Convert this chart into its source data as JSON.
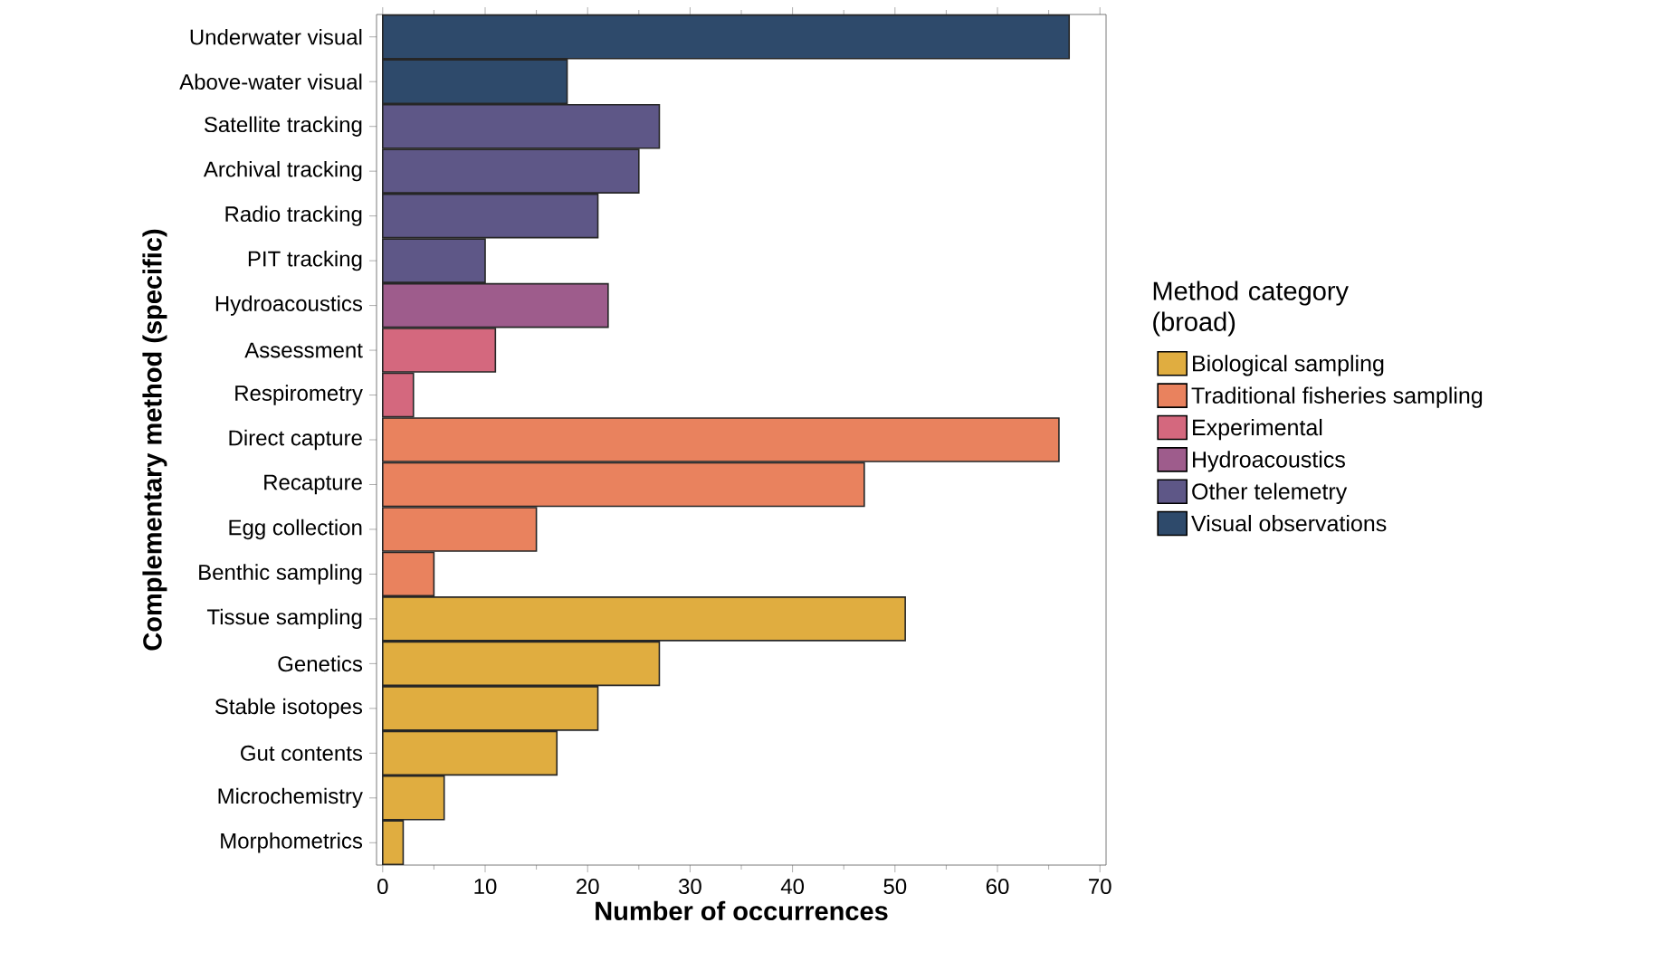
{
  "chart_data": {
    "type": "bar",
    "orientation": "horizontal",
    "xlabel": "Number of occurrences",
    "ylabel": "Complementary method (specific)",
    "legend_title": "Method category (broad)",
    "categories": [
      "Underwater visual",
      "Above-water visual",
      "Satellite tracking",
      "Archival tracking",
      "Radio tracking",
      "PIT tracking",
      "Hydroacoustics",
      "Assessment",
      "Respirometry",
      "Direct capture",
      "Recapture",
      "Egg collection",
      "Benthic sampling",
      "Tissue sampling",
      "Genetics",
      "Stable isotopes",
      "Gut contents",
      "Microchemistry",
      "Morphometrics"
    ],
    "series": [
      {
        "name": "Biological sampling",
        "color": "#e0ad40",
        "values": [
          null,
          null,
          null,
          null,
          null,
          null,
          null,
          null,
          null,
          null,
          null,
          null,
          null,
          51,
          27,
          21,
          17,
          6,
          2
        ]
      },
      {
        "name": "Traditional fisheries sampling",
        "color": "#e9825e",
        "values": [
          null,
          null,
          null,
          null,
          null,
          null,
          null,
          null,
          null,
          66,
          47,
          15,
          5,
          null,
          null,
          null,
          null,
          null,
          null
        ]
      },
      {
        "name": "Experimental",
        "color": "#d4687e",
        "values": [
          null,
          null,
          null,
          null,
          null,
          null,
          null,
          11,
          3,
          null,
          null,
          null,
          null,
          null,
          null,
          null,
          null,
          null,
          null
        ]
      },
      {
        "name": "Hydroacoustics",
        "color": "#9e5c8c",
        "values": [
          null,
          null,
          null,
          null,
          null,
          null,
          22,
          null,
          null,
          null,
          null,
          null,
          null,
          null,
          null,
          null,
          null,
          null,
          null
        ]
      },
      {
        "name": "Other telemetry",
        "color": "#5e5787",
        "values": [
          null,
          null,
          27,
          25,
          21,
          10,
          null,
          null,
          null,
          null,
          null,
          null,
          null,
          null,
          null,
          null,
          null,
          null,
          null
        ]
      },
      {
        "name": "Visual observations",
        "color": "#2e4a6b",
        "values": [
          67,
          18,
          null,
          null,
          null,
          null,
          null,
          null,
          null,
          null,
          null,
          null,
          null,
          null,
          null,
          null,
          null,
          null,
          null
        ]
      }
    ],
    "xlim": [
      -0.6,
      70.6
    ],
    "xticks": [
      0,
      10,
      20,
      30,
      40,
      50,
      60,
      70
    ],
    "grid": false,
    "legend": "right"
  }
}
